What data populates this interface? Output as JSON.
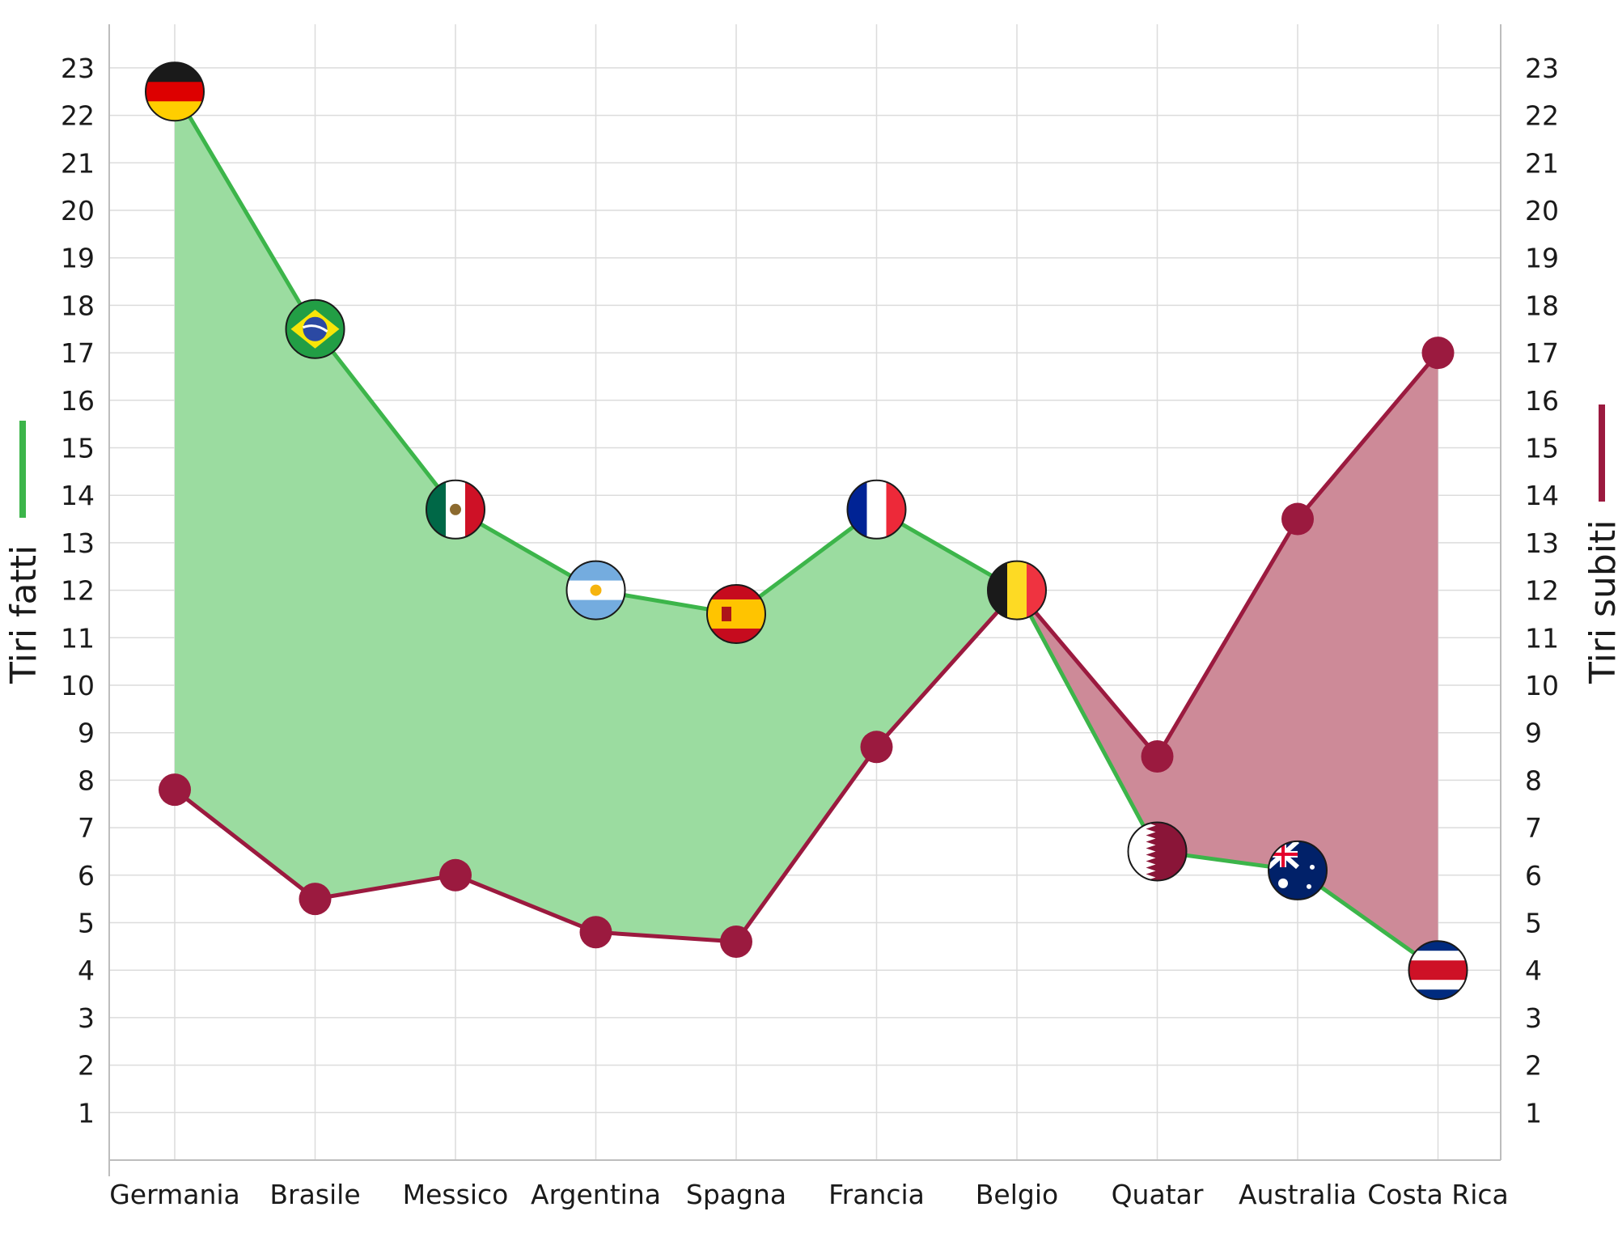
{
  "chart_data": {
    "type": "line",
    "categories": [
      "Germania",
      "Brasile",
      "Messico",
      "Argentina",
      "Spagna",
      "Francia",
      "Belgio",
      "Quatar",
      "Australia",
      "Costa Rica"
    ],
    "series": [
      {
        "name": "Tiri fatti",
        "axis": "left",
        "color": "#3cb54a",
        "fill": "#9bdca0",
        "values": [
          22.5,
          17.5,
          13.7,
          12.0,
          11.5,
          13.7,
          12.0,
          6.5,
          6.1,
          4.0
        ]
      },
      {
        "name": "Tiri subiti",
        "axis": "right",
        "color": "#9b1a3f",
        "fill": "#cd8a98",
        "values": [
          7.8,
          5.5,
          6.0,
          4.8,
          4.6,
          8.7,
          12.0,
          8.5,
          13.5,
          17.0
        ]
      }
    ],
    "ylabel_left": "Tiri fatti",
    "ylabel_right": "Tiri subiti",
    "y_ticks": [
      1,
      2,
      3,
      4,
      5,
      6,
      7,
      8,
      9,
      10,
      11,
      12,
      13,
      14,
      15,
      16,
      17,
      18,
      19,
      20,
      21,
      22,
      23
    ],
    "ylim": [
      0,
      23
    ],
    "grid": true,
    "markers": {
      "tiri_fatti": "flag",
      "tiri_subiti": "dot"
    },
    "flag_icons": [
      "germany-flag-icon",
      "brazil-flag-icon",
      "mexico-flag-icon",
      "argentina-flag-icon",
      "spain-flag-icon",
      "france-flag-icon",
      "belgium-flag-icon",
      "qatar-flag-icon",
      "australia-flag-icon",
      "costa-rica-flag-icon"
    ]
  }
}
